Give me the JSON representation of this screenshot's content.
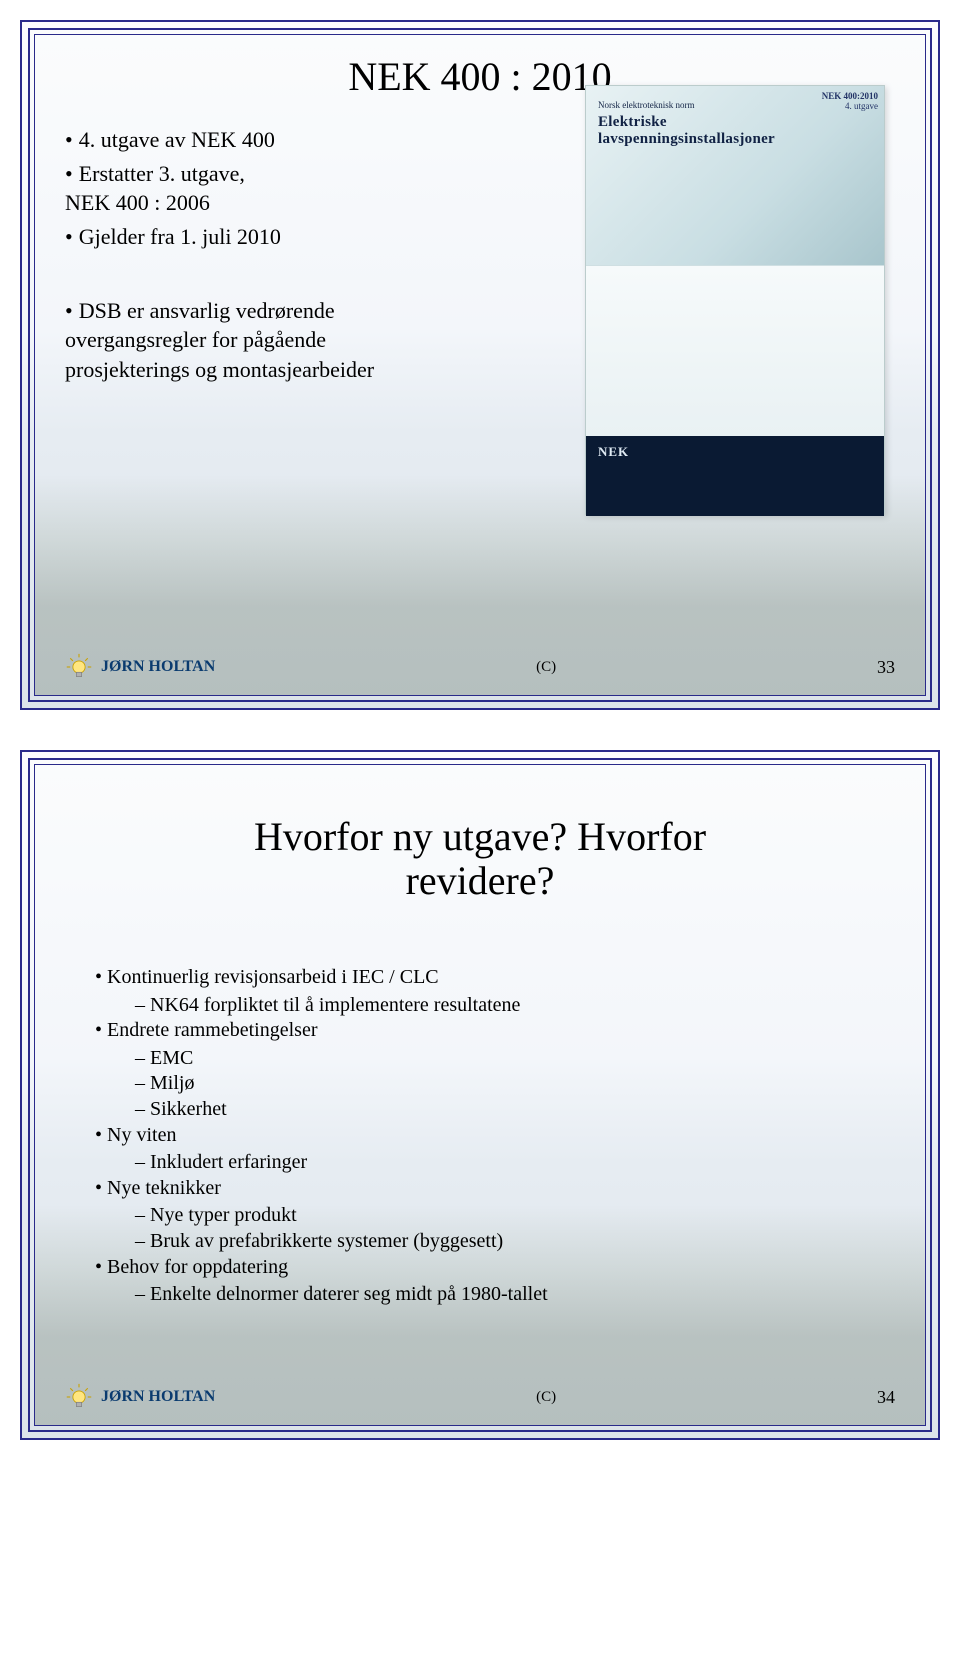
{
  "slide1": {
    "title": "NEK 400 : 2010",
    "bullets_a": [
      "4. utgave av NEK 400",
      "Erstatter 3. utgave,",
      "NEK 400 : 2006",
      "Gjelder fra 1. juli 2010"
    ],
    "bullets_b": [
      "DSB er ansvarlig vedrørende",
      "overgangsregler for pågående",
      "prosjekterings og montasjearbeider"
    ],
    "book": {
      "corner_line1": "NEK 400:2010",
      "corner_line2": "4. utgave",
      "norm": "Norsk elektroteknisk norm",
      "title_line1": "Elektriske",
      "title_line2": "lavspenningsinstallasjoner",
      "logo": "NEK"
    },
    "footer_name": "JØRN HOLTAN",
    "footer_center": "(C)",
    "footer_num": "33"
  },
  "slide2": {
    "title_line1": "Hvorfor ny utgave? Hvorfor",
    "title_line2": "revidere?",
    "items": [
      {
        "text": "Kontinuerlig revisjonsarbeid i IEC / CLC",
        "sub": [
          "NK64 forpliktet til å implementere resultatene"
        ]
      },
      {
        "text": "Endrete rammebetingelser",
        "sub": [
          "EMC",
          "Miljø",
          "Sikkerhet"
        ]
      },
      {
        "text": "Ny viten",
        "sub": [
          "Inkludert erfaringer"
        ]
      },
      {
        "text": "Nye teknikker",
        "sub": [
          "Nye typer produkt",
          "Bruk av prefabrikkerte systemer (byggesett)"
        ]
      },
      {
        "text": "Behov for oppdatering",
        "sub": [
          "Enkelte delnormer daterer seg midt på 1980-tallet"
        ]
      }
    ],
    "footer_name": "JØRN HOLTAN",
    "footer_center": "(C)",
    "footer_num": "34"
  },
  "colors": {
    "border": "#2a2a8a",
    "footer_name": "#0a3b6f"
  }
}
